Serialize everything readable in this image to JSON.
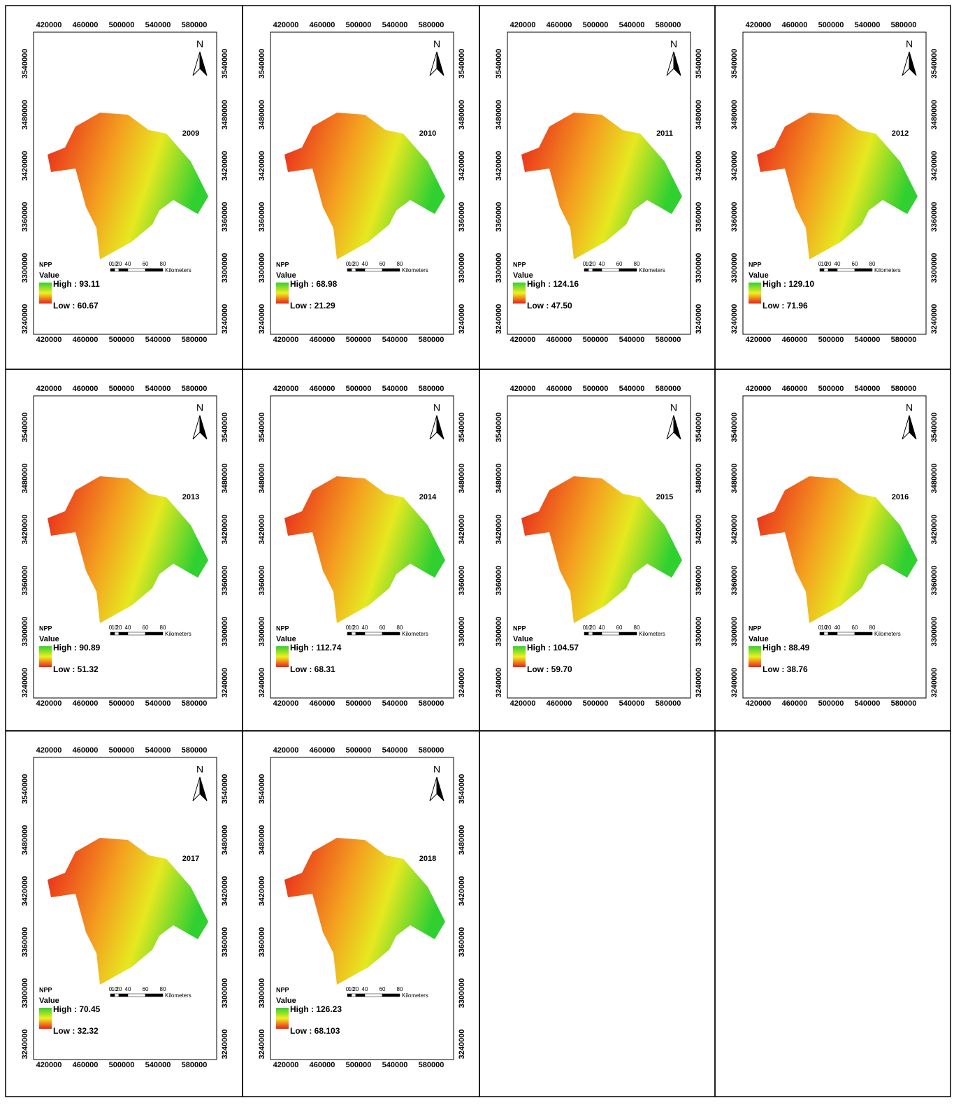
{
  "north": "N",
  "legend": {
    "title": "NPP",
    "subtitle": "Value"
  },
  "scale": {
    "labels": [
      "0",
      "10",
      "20",
      "40",
      "60",
      "80"
    ],
    "unit": "Kilometers"
  },
  "axes": {
    "x_labels": [
      "420000",
      "460000",
      "500000",
      "540000",
      "580000"
    ],
    "y_labels": [
      "3540000",
      "3480000",
      "3420000",
      "3360000",
      "3300000",
      "3240000"
    ]
  },
  "maps": [
    {
      "year": "2009",
      "high": "High : 93.11",
      "low": "Low : 60.67"
    },
    {
      "year": "2010",
      "high": "High : 68.98",
      "low": "Low : 21.29"
    },
    {
      "year": "2011",
      "high": "High : 124.16",
      "low": "Low : 47.50"
    },
    {
      "year": "2012",
      "high": "High : 129.10",
      "low": "Low : 71.96"
    },
    {
      "year": "2013",
      "high": "High : 90.89",
      "low": "Low : 51.32"
    },
    {
      "year": "2014",
      "high": "High : 112.74",
      "low": "Low : 68.31"
    },
    {
      "year": "2015",
      "high": "High : 104.57",
      "low": "Low : 59.70"
    },
    {
      "year": "2016",
      "high": "High : 88.49",
      "low": "Low : 38.76"
    },
    {
      "year": "2017",
      "high": "High : 70.45",
      "low": "Low : 32.32"
    },
    {
      "year": "2018",
      "high": "High : 126.23",
      "low": "Low : 68.103"
    }
  ]
}
